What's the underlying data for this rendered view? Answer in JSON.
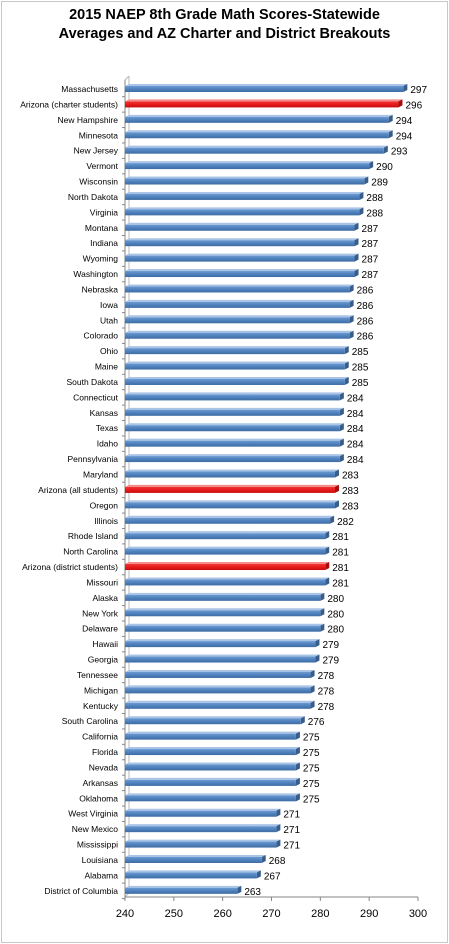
{
  "chart_data": {
    "type": "bar",
    "orientation": "horizontal",
    "title": [
      "2015 NAEP 8th Grade Math Scores-Statewide",
      "Averages and AZ Charter and District Breakouts"
    ],
    "xlim": [
      240,
      300
    ],
    "xticks": [
      "240",
      "250",
      "260",
      "270",
      "280",
      "290",
      "300"
    ],
    "grid": false,
    "legend": "none",
    "colors": {
      "default": "#4f81bd",
      "highlight": "#e8191b"
    },
    "categories": [
      "Massachusetts",
      "Arizona (charter students)",
      "New Hampshire",
      "Minnesota",
      "New Jersey",
      "Vermont",
      "Wisconsin",
      "North Dakota",
      "Virginia",
      "Montana",
      "Indiana",
      "Wyoming",
      "Washington",
      "Nebraska",
      "Iowa",
      "Utah",
      "Colorado",
      "Ohio",
      "Maine",
      "South Dakota",
      "Connecticut",
      "Kansas",
      "Texas",
      "Idaho",
      "Pennsylvania",
      "Maryland",
      "Arizona (all students)",
      "Oregon",
      "Illinois",
      "Rhode Island",
      "North Carolina",
      "Arizona (district students)",
      "Missouri",
      "Alaska",
      "New York",
      "Delaware",
      "Hawaii",
      "Georgia",
      "Tennessee",
      "Michigan",
      "Kentucky",
      "South Carolina",
      "California",
      "Florida",
      "Nevada",
      "Arkansas",
      "Oklahoma",
      "West Virginia",
      "New Mexico",
      "Mississippi",
      "Louisiana",
      "Alabama",
      "District of Columbia"
    ],
    "values": [
      297,
      296,
      294,
      294,
      293,
      290,
      289,
      288,
      288,
      287,
      287,
      287,
      287,
      286,
      286,
      286,
      286,
      285,
      285,
      285,
      284,
      284,
      284,
      284,
      284,
      283,
      283,
      283,
      282,
      281,
      281,
      281,
      281,
      280,
      280,
      280,
      279,
      279,
      278,
      278,
      278,
      276,
      275,
      275,
      275,
      275,
      275,
      271,
      271,
      271,
      268,
      267,
      263
    ],
    "highlighted": [
      "Arizona (charter students)",
      "Arizona (all students)",
      "Arizona (district students)"
    ]
  }
}
